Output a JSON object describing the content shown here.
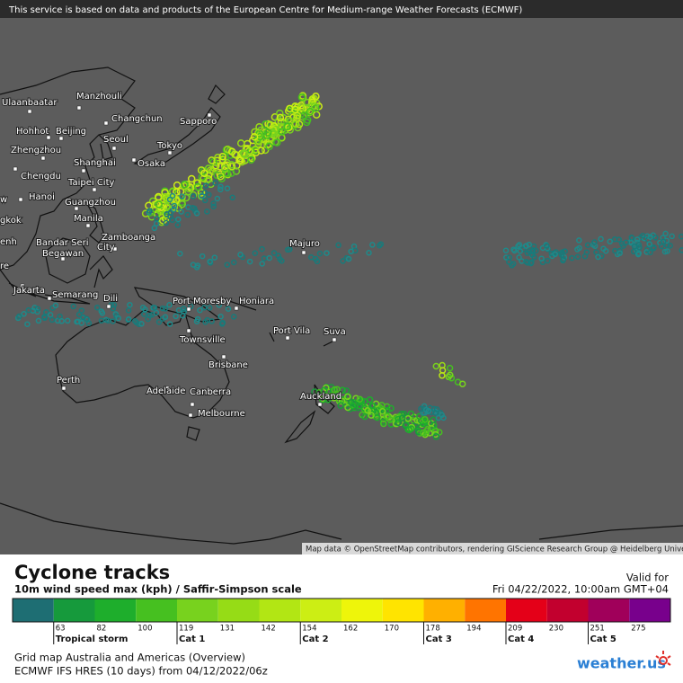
{
  "header": {
    "notice": "This service is based on data and products of the European Centre for Medium-range Weather Forecasts (ECMWF)"
  },
  "map": {
    "cities": [
      "Ulaanbaatar",
      "Manzhouli",
      "Changchun",
      "Sapporo",
      "Hohhot",
      "Beijing",
      "Seoul",
      "Tokyo",
      "Zhengzhou",
      "Osaka",
      "Shanghai",
      "Chengdu",
      "Taipei City",
      "Hanoi",
      "Guangzhou",
      "Manila",
      "Bandar Seri",
      "Begawan",
      "Zamboanga",
      "City",
      "Majuro",
      "Jakarta",
      "Semarang",
      "Dili",
      "Port Moresby",
      "Honiara",
      "Port Vila",
      "Suva",
      "Townsville",
      "Brisbane",
      "Perth",
      "Adelaide",
      "Canberra",
      "Melbourne",
      "Auckland",
      "w",
      "gkok",
      "enh",
      "re"
    ],
    "attribution": "Map data © OpenStreetMap contributors, rendering GIScience Research Group @ Heidelberg University"
  },
  "legend": {
    "title": "Cyclone tracks",
    "subtitle": "10m wind speed max (kph) / Saffir-Simpson scale",
    "valid_label": "Valid for",
    "valid_time": "Fri 04/22/2022, 10:00am GMT+04",
    "bins": [
      {
        "color": "#1e6e73"
      },
      {
        "value": 63,
        "color": "#169a3c",
        "category": "Tropical storm"
      },
      {
        "value": 82,
        "color": "#1eae2c"
      },
      {
        "value": 100,
        "color": "#46c020"
      },
      {
        "value": 119,
        "color": "#78d21e",
        "category": "Cat 1"
      },
      {
        "value": 131,
        "color": "#96dc16"
      },
      {
        "value": 142,
        "color": "#b2e614"
      },
      {
        "value": 154,
        "color": "#ccee14",
        "category": "Cat 2"
      },
      {
        "value": 162,
        "color": "#eef50a"
      },
      {
        "value": 170,
        "color": "#ffe400"
      },
      {
        "value": 178,
        "color": "#ffb000",
        "category": "Cat 3"
      },
      {
        "value": 194,
        "color": "#ff7400"
      },
      {
        "value": 209,
        "color": "#e40018",
        "category": "Cat 4"
      },
      {
        "value": 230,
        "color": "#c2002e"
      },
      {
        "value": 251,
        "color": "#a0005a",
        "category": "Cat 5"
      },
      {
        "value": 275,
        "color": "#78008c"
      }
    ]
  },
  "footer": {
    "line1": "Grid map Australia and Americas (Overview)",
    "line2": "ECMWF IFS HRES (10 days) from 04/12/2022/06z",
    "logo": "weather.us"
  }
}
